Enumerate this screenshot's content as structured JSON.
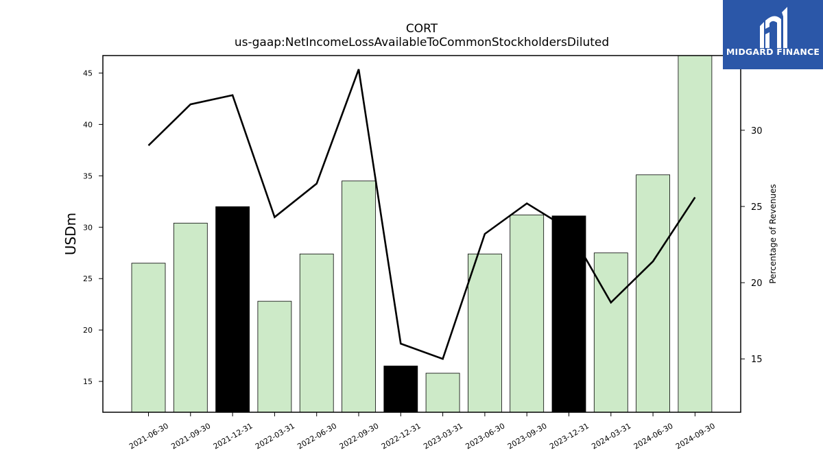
{
  "brand": {
    "name": "MIDGARD FINANCE",
    "color": "#2b57a8"
  },
  "chart_data": {
    "type": "bar",
    "title": "CORT",
    "subtitle": "us-gaap:NetIncomeLossAvailableToCommonStockholdersDiluted",
    "ylabel": "USDm",
    "y2label": "Percentage of Revenues",
    "categories": [
      "2021-06-30",
      "2021-09-30",
      "2021-12-31",
      "2022-03-31",
      "2022-06-30",
      "2022-09-30",
      "2022-12-31",
      "2023-03-31",
      "2023-06-30",
      "2023-09-30",
      "2023-12-31",
      "2024-03-31",
      "2024-06-30",
      "2024-09-30"
    ],
    "series": [
      {
        "values": [
          26.5,
          30.4,
          32.0,
          22.8,
          27.4,
          34.5,
          16.5,
          15.8,
          27.4,
          31.2,
          31.1,
          27.5,
          35.1,
          46.8
        ],
        "highlight": [
          false,
          false,
          true,
          false,
          false,
          false,
          true,
          false,
          false,
          false,
          true,
          false,
          false,
          false
        ],
        "color": "#cdeac8",
        "highlight_color": "#000000"
      },
      {
        "axis": "right",
        "values": [
          29.0,
          31.7,
          32.3,
          24.3,
          26.5,
          34.0,
          16.0,
          15.0,
          23.2,
          25.2,
          23.5,
          18.7,
          21.4,
          25.6
        ],
        "color": "#000000"
      }
    ],
    "ylim": [
      12,
      46.7
    ],
    "y2lim": [
      11.5,
      34.9
    ],
    "yticks": [
      15,
      20,
      25,
      30,
      35,
      40,
      45
    ],
    "y2ticks": [
      15,
      20,
      25,
      30
    ],
    "grid": false
  }
}
